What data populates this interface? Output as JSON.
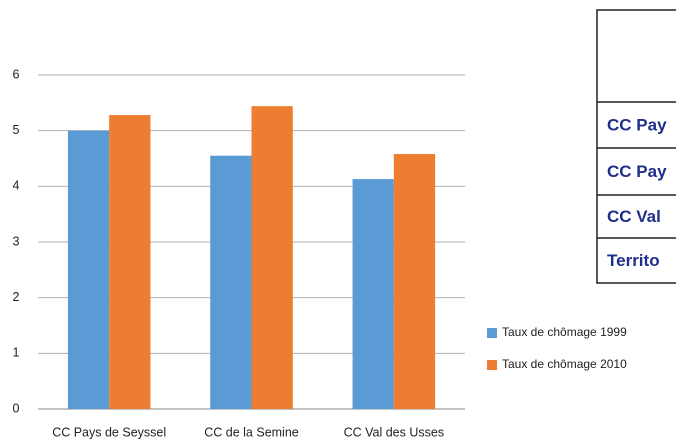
{
  "chart_data": {
    "type": "bar",
    "categories": [
      "CC Pays de Seyssel",
      "CC de la Semine",
      "CC Val des Usses"
    ],
    "series": [
      {
        "name": "Taux de chômage 1999",
        "color": "#5b9bd5",
        "values": [
          5.0,
          4.55,
          4.13
        ]
      },
      {
        "name": "Taux de chômage 2010",
        "color": "#ed7d31",
        "values": [
          5.28,
          5.44,
          4.58
        ]
      }
    ],
    "ylim": [
      0,
      6
    ],
    "yticks": [
      0,
      1,
      2,
      3,
      4,
      5,
      6
    ],
    "grid": true,
    "legend": "right"
  },
  "table": {
    "rows": [
      "CC Pay",
      "CC Pay",
      "CC Val",
      "Territo"
    ]
  }
}
